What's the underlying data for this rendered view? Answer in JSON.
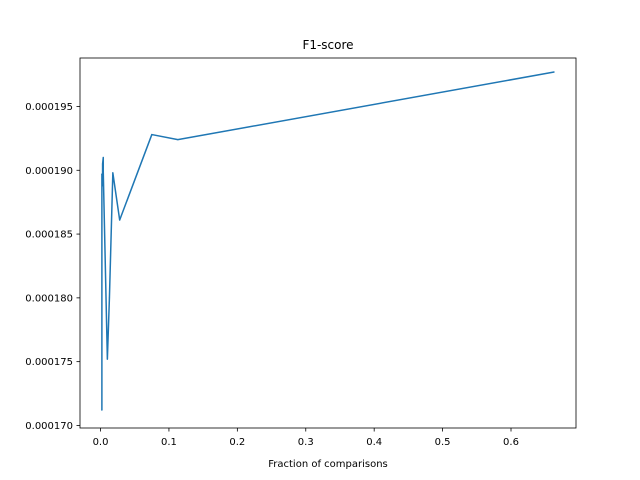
{
  "chart_data": {
    "type": "line",
    "title": "F1-score",
    "xlabel": "Fraction of comparisons",
    "ylabel": "",
    "xlim": [
      -0.03,
      0.695
    ],
    "ylim": [
      0.0001698,
      0.0001988
    ],
    "x_ticks": [
      0.0,
      0.1,
      0.2,
      0.3,
      0.4,
      0.5,
      0.6
    ],
    "x_tick_labels": [
      "0.0",
      "0.1",
      "0.2",
      "0.3",
      "0.4",
      "0.5",
      "0.6"
    ],
    "y_ticks": [
      0.00017,
      0.000175,
      0.00018,
      0.000185,
      0.00019,
      0.000195
    ],
    "y_tick_labels": [
      "0.000170",
      "0.000175",
      "0.000180",
      "0.000185",
      "0.000190",
      "0.000195"
    ],
    "grid": false,
    "line_color": "#1f77b4",
    "series": [
      {
        "x": [
          0.002,
          0.002,
          0.003,
          0.003,
          0.004,
          0.004,
          0.01,
          0.013,
          0.018,
          0.028,
          0.075,
          0.113,
          0.663
        ],
        "values": [
          0.0001712,
          0.0001897,
          0.0001888,
          0.0001905,
          0.000191,
          0.0001899,
          0.0001752,
          0.00018,
          0.0001898,
          0.0001861,
          0.0001928,
          0.0001924,
          0.0001977
        ]
      }
    ]
  }
}
